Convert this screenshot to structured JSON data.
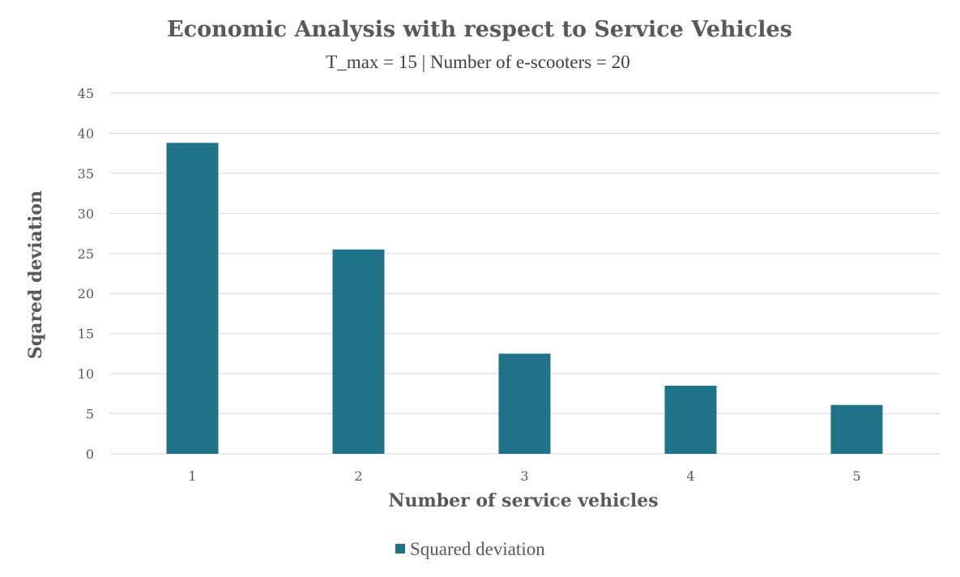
{
  "chart_data": {
    "type": "bar",
    "title": "Economic Analysis with respect to Service Vehicles",
    "subtitle": "T_max = 15 | Number of e-scooters = 20",
    "xlabel": "Number of service vehicles",
    "ylabel": "Sqared deviation",
    "categories": [
      "1",
      "2",
      "3",
      "4",
      "5"
    ],
    "series": [
      {
        "name": "Squared deviation",
        "values": [
          38.8,
          25.5,
          12.5,
          8.5,
          6.1
        ],
        "color": "#1f7287"
      }
    ],
    "ylim": [
      0,
      45
    ],
    "yticks": [
      "0",
      "5",
      "10",
      "15",
      "20",
      "25",
      "30",
      "35",
      "40",
      "45"
    ],
    "grid": true,
    "legend_position": "bottom"
  }
}
